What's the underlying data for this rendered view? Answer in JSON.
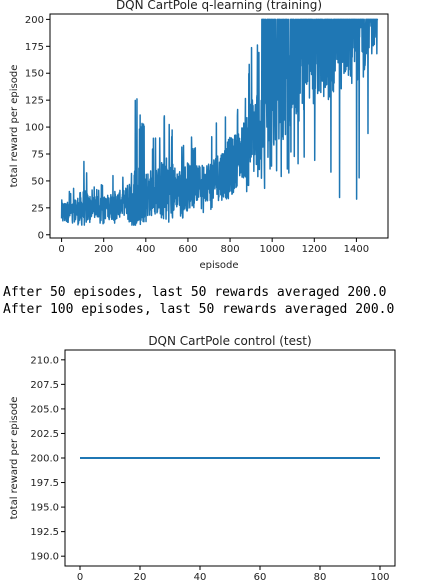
{
  "chart_data": [
    {
      "type": "line",
      "title": "DQN CartPole q-learning (training)",
      "xlabel": "episode",
      "ylabel": "total reward per episode",
      "xlim": [
        -55,
        1550
      ],
      "ylim": [
        -3,
        205
      ],
      "xticks": [
        0,
        200,
        400,
        600,
        800,
        1000,
        1200,
        1400
      ],
      "yticks": [
        0,
        25,
        50,
        75,
        100,
        125,
        150,
        175,
        200
      ],
      "color": "#1f77b4",
      "series": [
        {
          "x": [
            0,
            50,
            100,
            150,
            200,
            250,
            300,
            350,
            400,
            450,
            500,
            550,
            600,
            650,
            700,
            750,
            800,
            850,
            900,
            950,
            1000,
            1050,
            1100,
            1150,
            1200,
            1250,
            1300,
            1350,
            1400,
            1450,
            1500
          ],
          "y_mean": [
            20,
            22,
            24,
            26,
            25,
            27,
            30,
            33,
            38,
            40,
            42,
            43,
            45,
            48,
            50,
            55,
            62,
            75,
            90,
            105,
            120,
            128,
            140,
            150,
            160,
            165,
            175,
            180,
            185,
            190,
            195
          ],
          "y_max": [
            55,
            40,
            78,
            45,
            48,
            60,
            55,
            140,
            95,
            90,
            135,
            80,
            100,
            75,
            90,
            110,
            135,
            120,
            175,
            200,
            200,
            200,
            200,
            200,
            200,
            200,
            200,
            200,
            200,
            200,
            200
          ],
          "y_min": [
            10,
            10,
            10,
            10,
            10,
            10,
            12,
            12,
            12,
            12,
            14,
            15,
            15,
            18,
            20,
            25,
            30,
            35,
            40,
            40,
            45,
            50,
            60,
            50,
            60,
            55,
            20,
            45,
            15,
            50,
            92
          ]
        }
      ]
    },
    {
      "type": "line",
      "title": "DQN CartPole control (test)",
      "xlabel": "",
      "ylabel": "total reward per episode",
      "xlim": [
        -5,
        105
      ],
      "ylim": [
        189,
        211
      ],
      "xticks": [
        0,
        20,
        40,
        60,
        80,
        100
      ],
      "yticks": [
        190.0,
        192.5,
        195.0,
        197.5,
        200.0,
        202.5,
        205.0,
        207.5,
        210.0
      ],
      "ytick_labels": [
        "190.0",
        "192.5",
        "195.0",
        "197.5",
        "200.0",
        "202.5",
        "205.0",
        "207.5",
        "210.0"
      ],
      "color": "#1f77b4",
      "series": [
        {
          "x": [
            0,
            100
          ],
          "y": [
            200,
            200
          ]
        }
      ]
    }
  ],
  "output_lines": [
    "After 50 episodes, last 50 rewards averaged 200.0",
    "After 100 episodes, last 50 rewards averaged 200.0"
  ]
}
